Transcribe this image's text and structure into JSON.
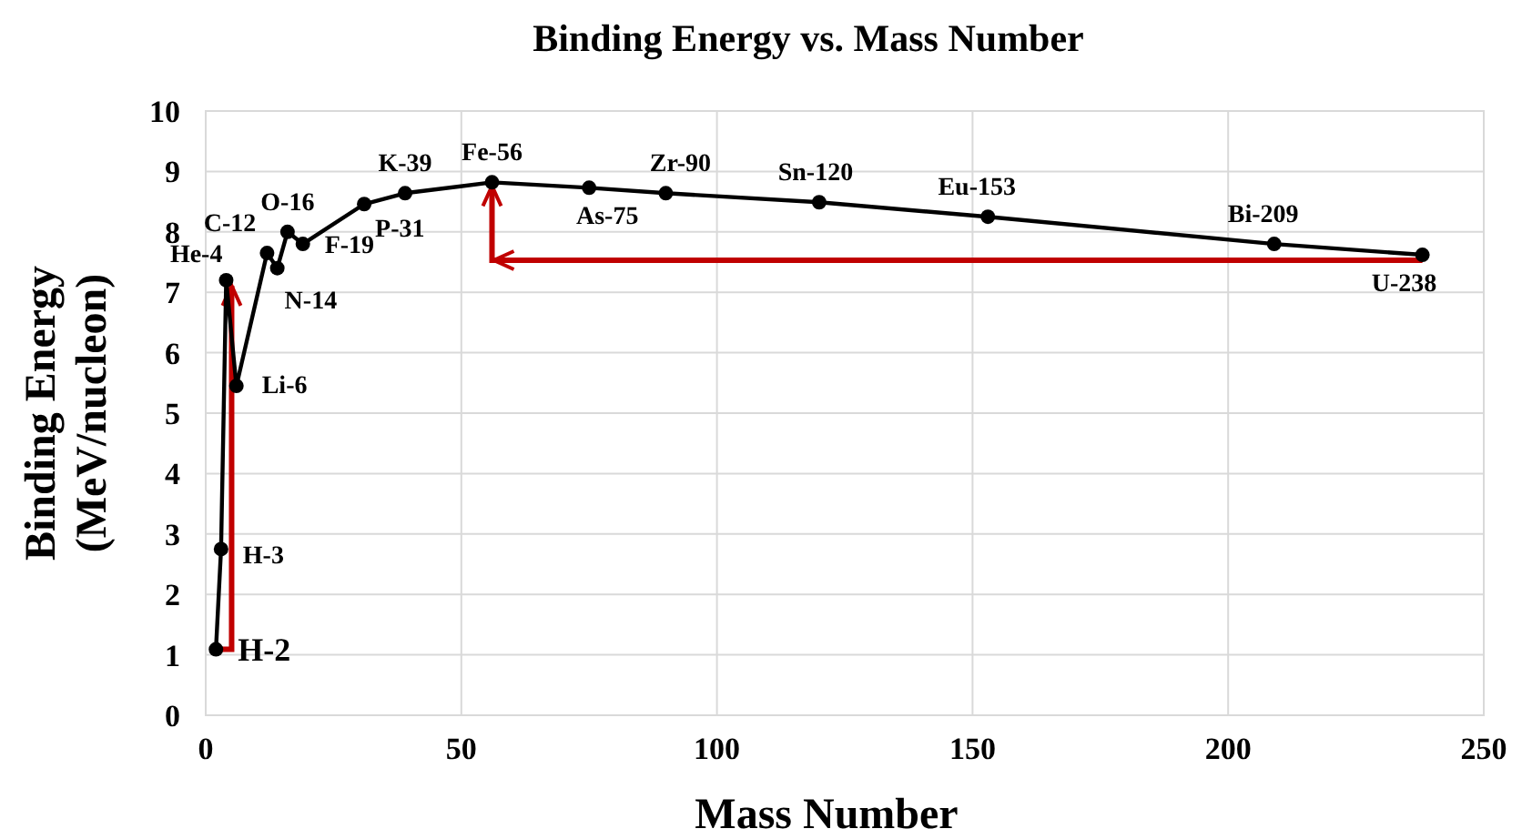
{
  "chart_data": {
    "type": "line",
    "title": "Binding Energy vs. Mass Number",
    "xlabel": "Mass Number",
    "ylabel": "Binding Energy\n(MeV/nucleon)",
    "x": [
      2,
      3,
      4,
      6,
      12,
      14,
      16,
      19,
      31,
      39,
      56,
      75,
      90,
      120,
      153,
      209,
      238
    ],
    "series": [
      {
        "color": "#000000",
        "values": [
          1.09,
          2.75,
          7.2,
          5.45,
          7.65,
          7.4,
          8.0,
          7.8,
          8.46,
          8.64,
          8.82,
          8.73,
          8.64,
          8.49,
          8.25,
          7.8,
          7.62
        ]
      }
    ],
    "annotations": [
      {
        "text": "H-2",
        "x": 2,
        "y": 1.09
      },
      {
        "text": "H-3",
        "x": 3,
        "y": 2.75
      },
      {
        "text": "He-4",
        "x": 4,
        "y": 7.2
      },
      {
        "text": "Li-6",
        "x": 6,
        "y": 5.45
      },
      {
        "text": "C-12",
        "x": 12,
        "y": 7.65
      },
      {
        "text": "N-14",
        "x": 14,
        "y": 7.4
      },
      {
        "text": "O-16",
        "x": 16,
        "y": 8.0
      },
      {
        "text": "F-19",
        "x": 19,
        "y": 7.8
      },
      {
        "text": "P-31",
        "x": 31,
        "y": 8.46
      },
      {
        "text": "K-39",
        "x": 39,
        "y": 8.64
      },
      {
        "text": "Fe-56",
        "x": 56,
        "y": 8.82
      },
      {
        "text": "As-75",
        "x": 75,
        "y": 8.73
      },
      {
        "text": "Zr-90",
        "x": 90,
        "y": 8.64
      },
      {
        "text": "Sn-120",
        "x": 120,
        "y": 8.49
      },
      {
        "text": "Eu-153",
        "x": 153,
        "y": 8.25
      },
      {
        "text": "Bi-209",
        "x": 209,
        "y": 7.8
      },
      {
        "text": "U-238",
        "x": 238,
        "y": 7.62
      }
    ],
    "xlim": [
      0,
      250
    ],
    "xticks": [
      0,
      50,
      100,
      150,
      200,
      250
    ],
    "ylim": [
      0,
      10
    ],
    "yticks": [
      0,
      1,
      2,
      3,
      4,
      5,
      6,
      7,
      8,
      9,
      10
    ],
    "grid": true,
    "marker": "circle",
    "line_style": "solid"
  }
}
